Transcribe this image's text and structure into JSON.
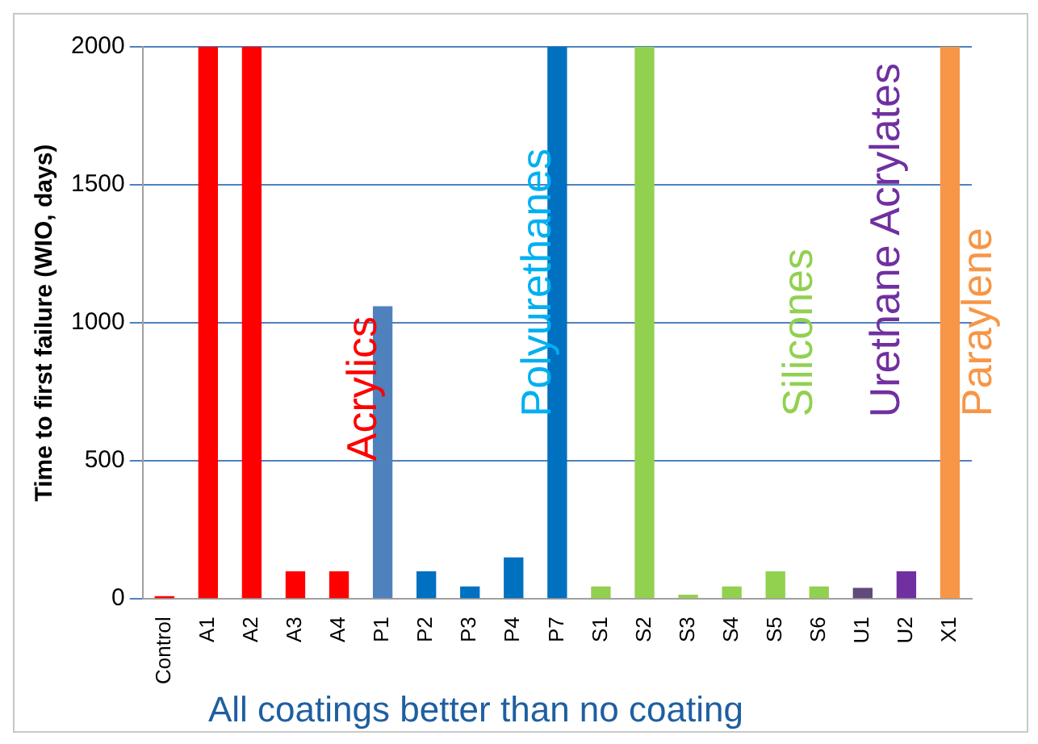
{
  "chart_data": {
    "type": "bar",
    "ylabel": "Time to first failure (WIO, days)",
    "categories": [
      "Control",
      "A1",
      "A2",
      "A3",
      "A4",
      "P1",
      "P2",
      "P3",
      "P4",
      "P7",
      "S1",
      "S2",
      "S3",
      "S4",
      "S5",
      "S6",
      "U1",
      "U2",
      "X1"
    ],
    "values": [
      10,
      2000,
      2000,
      100,
      100,
      1060,
      100,
      45,
      150,
      2000,
      45,
      2000,
      15,
      45,
      100,
      45,
      40,
      100,
      2000
    ],
    "colors": [
      "#ff0000",
      "#ff0000",
      "#ff0000",
      "#ff0000",
      "#ff0000",
      "#4f81bd",
      "#0070c0",
      "#0070c0",
      "#0070c0",
      "#0070c0",
      "#92d050",
      "#92d050",
      "#92d050",
      "#92d050",
      "#92d050",
      "#92d050",
      "#604a7b",
      "#7030a0",
      "#f79646"
    ],
    "ylim": [
      0,
      2000
    ],
    "yticks": [
      0,
      500,
      1000,
      1500,
      2000
    ],
    "grid": "y",
    "legend": false,
    "annotations": [
      "Acrylics",
      "Polyurethanes",
      "Silicones",
      "Urethane Acrylates",
      "Paraylene",
      "All coatings better than no coating"
    ]
  }
}
